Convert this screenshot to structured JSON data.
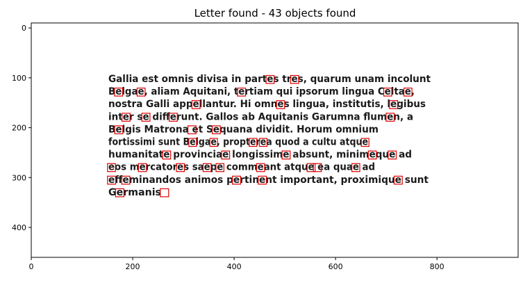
{
  "title": "Letter found - 43 objects found",
  "axes": {
    "x": {
      "ticks": [
        0,
        200,
        400,
        600,
        800
      ],
      "range": [
        0,
        960
      ]
    },
    "y": {
      "ticks": [
        0,
        100,
        200,
        300,
        400
      ],
      "range": [
        460,
        -10
      ],
      "inverted": true
    }
  },
  "document": {
    "lines": [
      "Gallia est omnis divisa in partes tres, quarum unam incolunt",
      "Belgae, aliam Aquitani, tertiam qui ipsorum lingua Celtae,",
      "nostra Galli appellantur. Hi omnes lingua, institutis, legibus",
      "inter se differunt. Gallos ab Aquitanis Garumna flumen, a",
      "Belgis Matrona et Sequana dividit. Horum omnium",
      "fortissimi sunt Belgae, propterea quod a cultu atque",
      "humanitate provinciae longissime absunt, minimeque ad",
      "eos mercatores saepe commeant atque ea quae ad",
      "effeminandos animos pertinent important, proximique sunt",
      "Germanis"
    ]
  },
  "detections": {
    "target_letter": "e",
    "count": 43,
    "box_color": "#e00000",
    "boxes": [
      [
        0,
        "Gallia est omnis divisa in part"
      ],
      [
        0,
        "Gallia est omnis divisa in partes tr"
      ],
      [
        1,
        "B"
      ],
      [
        1,
        "Belga"
      ],
      [
        1,
        "Belgae, aliam Aquitani, t"
      ],
      [
        1,
        "Belgae, aliam Aquitani, tertiam qui ipsorum lingua C"
      ],
      [
        1,
        "Belgae, aliam Aquitani, tertiam qui ipsorum lingua Celta"
      ],
      [
        2,
        "nostra Galli app"
      ],
      [
        2,
        "nostra Galli appellantur. Hi omn"
      ],
      [
        2,
        "nostra Galli appellantur. Hi omnes lingua, institutis, l"
      ],
      [
        3,
        "int"
      ],
      [
        3,
        "inter s"
      ],
      [
        3,
        "inter se diff"
      ],
      [
        3,
        "inter se differunt. Gallos ab Aquitanis Garumna flum"
      ],
      [
        4,
        "B"
      ],
      [
        4,
        "Belgis Matrona "
      ],
      [
        4,
        "Belgis Matrona et S"
      ],
      [
        5,
        "fortissimi sunt B"
      ],
      [
        5,
        "fortissimi sunt Belga"
      ],
      [
        5,
        "fortissimi sunt Belgae, propt"
      ],
      [
        5,
        "fortissimi sunt Belgae, propter"
      ],
      [
        5,
        "fortissimi sunt Belgae, propterea quod a cultu atqu"
      ],
      [
        6,
        "humanitat"
      ],
      [
        6,
        "humanitate provincia"
      ],
      [
        6,
        "humanitate provinciae longissim"
      ],
      [
        6,
        "humanitate provinciae longissime absunt, minim"
      ],
      [
        6,
        "humanitate provinciae longissime absunt, minimequ"
      ],
      [
        7,
        ""
      ],
      [
        7,
        "eos m"
      ],
      [
        7,
        "eos mercator"
      ],
      [
        7,
        "eos mercatores sa"
      ],
      [
        7,
        "eos mercatores saep"
      ],
      [
        7,
        "eos mercatores saepe comm"
      ],
      [
        7,
        "eos mercatores saepe commeant atqu"
      ],
      [
        7,
        "eos mercatores saepe commeant atque "
      ],
      [
        7,
        "eos mercatores saepe commeant atque ea qua"
      ],
      [
        8,
        ""
      ],
      [
        8,
        "eff"
      ],
      [
        8,
        "effeminandos animos p"
      ],
      [
        8,
        "effeminandos animos pertin"
      ],
      [
        8,
        "effeminandos animos pertinent important, proximiqu"
      ],
      [
        9,
        "G"
      ],
      [
        9,
        "Germanis"
      ]
    ]
  }
}
